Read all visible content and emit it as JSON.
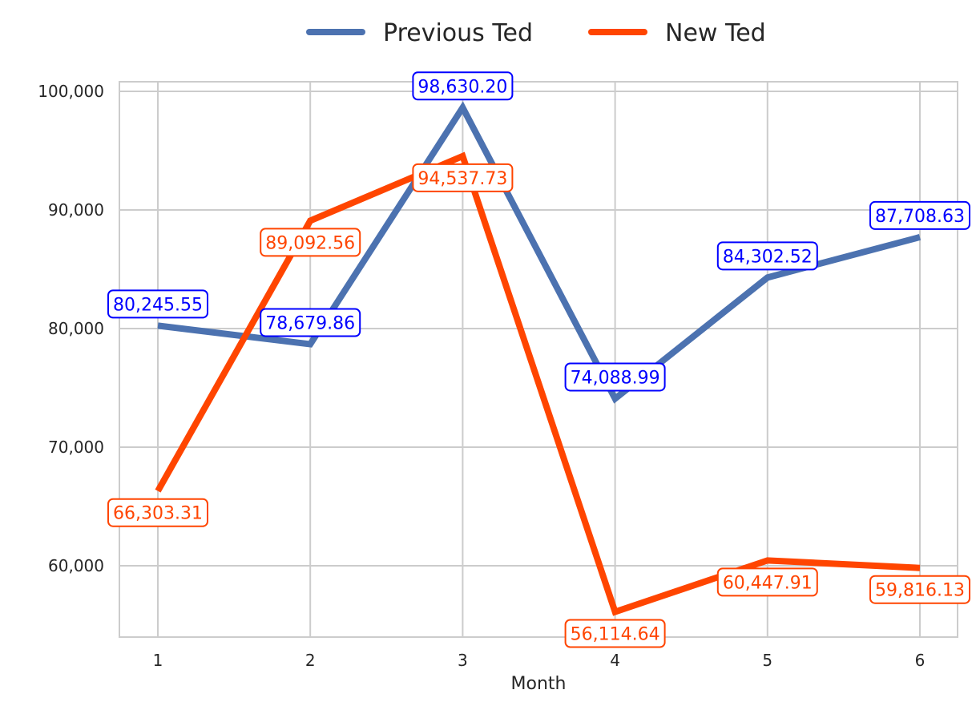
{
  "chart_data": {
    "type": "line",
    "x": [
      1,
      2,
      3,
      4,
      5,
      6
    ],
    "xlabel": "Month",
    "ylabel": "",
    "ylim": [
      54000,
      101000
    ],
    "yticks": [
      60000,
      70000,
      80000,
      90000,
      100000
    ],
    "ytick_labels": [
      "60,000",
      "70,000",
      "80,000",
      "90,000",
      "100,000"
    ],
    "xtick_labels": [
      "1",
      "2",
      "3",
      "4",
      "5",
      "6"
    ],
    "grid": true,
    "legend_position": "top-center",
    "series": [
      {
        "name": "Previous Ted",
        "color": "#4C72B0",
        "label_color": "#0000FF",
        "values": [
          80245.55,
          78679.86,
          98630.2,
          74088.99,
          84302.52,
          87708.63
        ],
        "labels": [
          "80,245.55",
          "78,679.86",
          "98,630.20",
          "74,088.99",
          "84,302.52",
          "87,708.63"
        ]
      },
      {
        "name": "New Ted",
        "color": "#FF4500",
        "label_color": "#FF4500",
        "values": [
          66303.31,
          89092.56,
          94537.73,
          56114.64,
          60447.91,
          59816.13
        ],
        "labels": [
          "66,303.31",
          "89,092.56",
          "94,537.73",
          "56,114.64",
          "60,447.91",
          "59,816.13"
        ]
      }
    ]
  }
}
